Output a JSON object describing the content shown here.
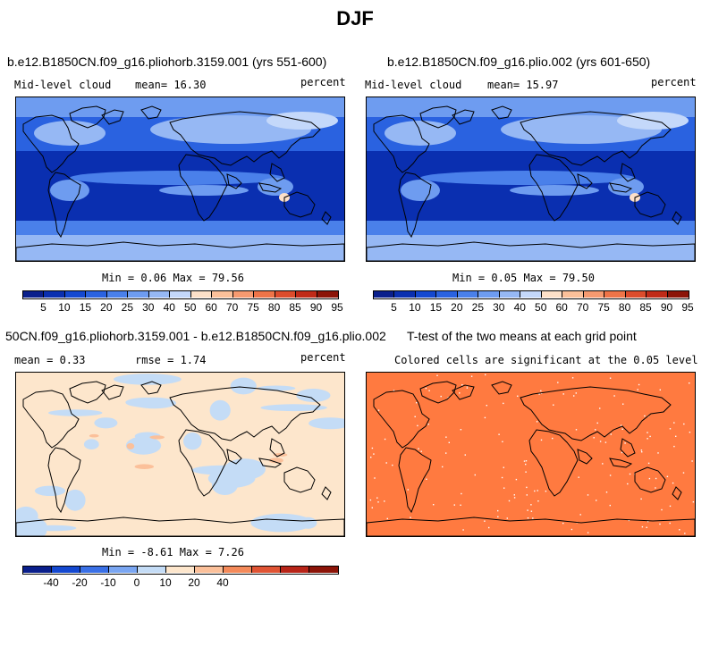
{
  "title": "DJF",
  "panels": [
    {
      "title": "b.e12.B1850CN.f09_g16.pliohorb.3159.001 (yrs 551-600)",
      "left_label": "Mid-level cloud",
      "mid_label": "mean=  16.30",
      "right_label": "percent",
      "stats": "Min =   0.06 Max =  79.56",
      "colorbar_labels": [
        "5",
        "10",
        "15",
        "20",
        "25",
        "30",
        "40",
        "50",
        "60",
        "70",
        "75",
        "80",
        "85",
        "90",
        "95"
      ]
    },
    {
      "title": "b.e12.B1850CN.f09_g16.plio.002 (yrs 601-650)",
      "left_label": "Mid-level cloud",
      "mid_label": "mean=  15.97",
      "right_label": "percent",
      "stats": "Min =   0.05 Max =  79.50",
      "colorbar_labels": [
        "5",
        "10",
        "15",
        "20",
        "25",
        "30",
        "40",
        "50",
        "60",
        "70",
        "75",
        "80",
        "85",
        "90",
        "95"
      ]
    },
    {
      "title": "50CN.f09_g16.pliohorb.3159.001 - b.e12.B1850CN.f09_g16.plio.002",
      "left_label": "mean =   0.33",
      "mid_label": "rmse =   1.74",
      "right_label": "percent",
      "stats": "Min =  -8.61 Max =   7.26",
      "colorbar_labels": [
        "-40",
        "-20",
        "-10",
        "0",
        "10",
        "20",
        "40"
      ]
    },
    {
      "title": "T-test of the two means at each grid point",
      "subtitle": "Colored cells are significant at the 0.05 level"
    }
  ],
  "colors": {
    "abs_scale": [
      "#0a1f8c",
      "#0a2fb0",
      "#1448d0",
      "#2a62e0",
      "#4a80ea",
      "#6e9cf0",
      "#96b8f4",
      "#c4d8fa",
      "#fde0c8",
      "#fbc09a",
      "#f69a70",
      "#ee7448",
      "#dc4c2c",
      "#c02a18",
      "#8c1408"
    ],
    "diff_scale": [
      "#0a1f8c",
      "#1448d0",
      "#3a70e6",
      "#7aa6f2",
      "#c4dcf6",
      "#fde6cc",
      "#fbc09a",
      "#f48a5a",
      "#e05434",
      "#b82418",
      "#8c1408"
    ],
    "ttest_fill": "#ff7a40"
  }
}
